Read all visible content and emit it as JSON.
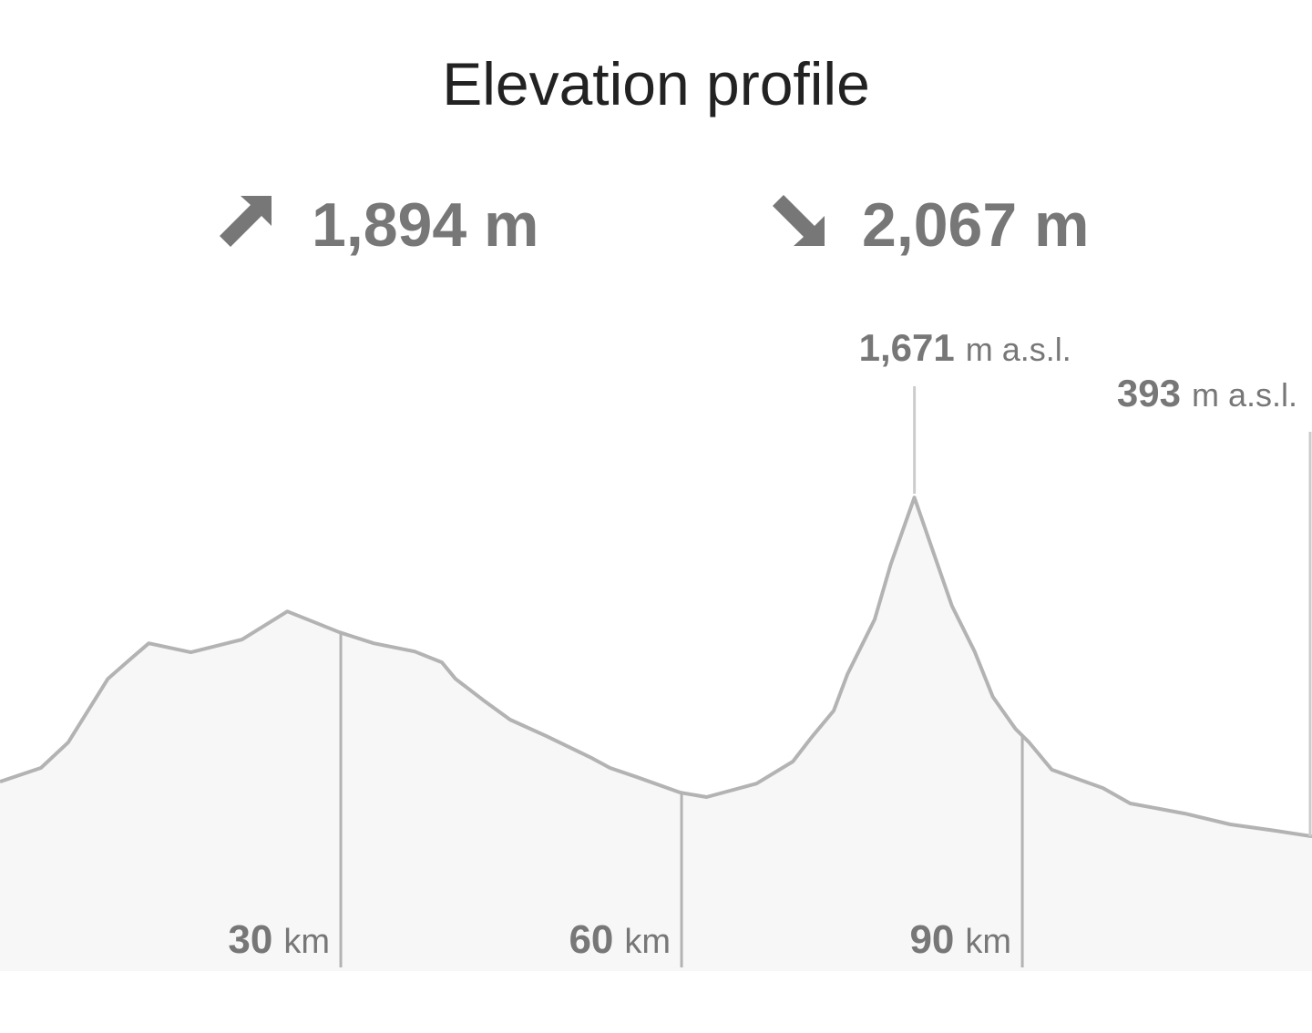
{
  "chart_data": {
    "type": "area",
    "title": "Elevation profile",
    "ascent": "1,894 m",
    "descent": "2,067 m",
    "elevation_unit": "m a.s.l.",
    "x_unit": "km",
    "x": [
      0,
      3.6,
      6.0,
      8.0,
      9.5,
      11.6,
      13.1,
      16.8,
      21.3,
      25.3,
      27.7,
      29.9,
      32.9,
      36.5,
      38.9,
      40.1,
      42.5,
      44.9,
      48.1,
      52.1,
      53.7,
      56.1,
      59.9,
      62.2,
      66.6,
      69.8,
      71.4,
      73.4,
      74.6,
      77.0,
      78.4,
      80.5,
      82.0,
      83.8,
      85.8,
      87.4,
      89.4,
      90.6,
      92.6,
      97.1,
      99.5,
      104.3,
      108.3,
      112.3,
      115.5
    ],
    "values": [
      599,
      651,
      747,
      884,
      987,
      1066,
      1121,
      1087,
      1135,
      1241,
      1200,
      1162,
      1121,
      1090,
      1049,
      987,
      908,
      833,
      771,
      688,
      651,
      616,
      558,
      541,
      592,
      675,
      764,
      867,
      1004,
      1211,
      1417,
      1671,
      1485,
      1262,
      1090,
      919,
      798,
      747,
      644,
      575,
      517,
      479,
      438,
      414,
      393
    ],
    "peak": {
      "x": 80.5,
      "value": 1671,
      "label": "1,671"
    },
    "end": {
      "x": 115.5,
      "value": 393,
      "label": "393"
    },
    "xlim": [
      0,
      115.5
    ],
    "xticks": [
      30,
      60,
      90
    ],
    "ylim": [
      -115,
      2104
    ],
    "line_color": "#b3b3b3",
    "fill_color": "#f7f7f7"
  }
}
